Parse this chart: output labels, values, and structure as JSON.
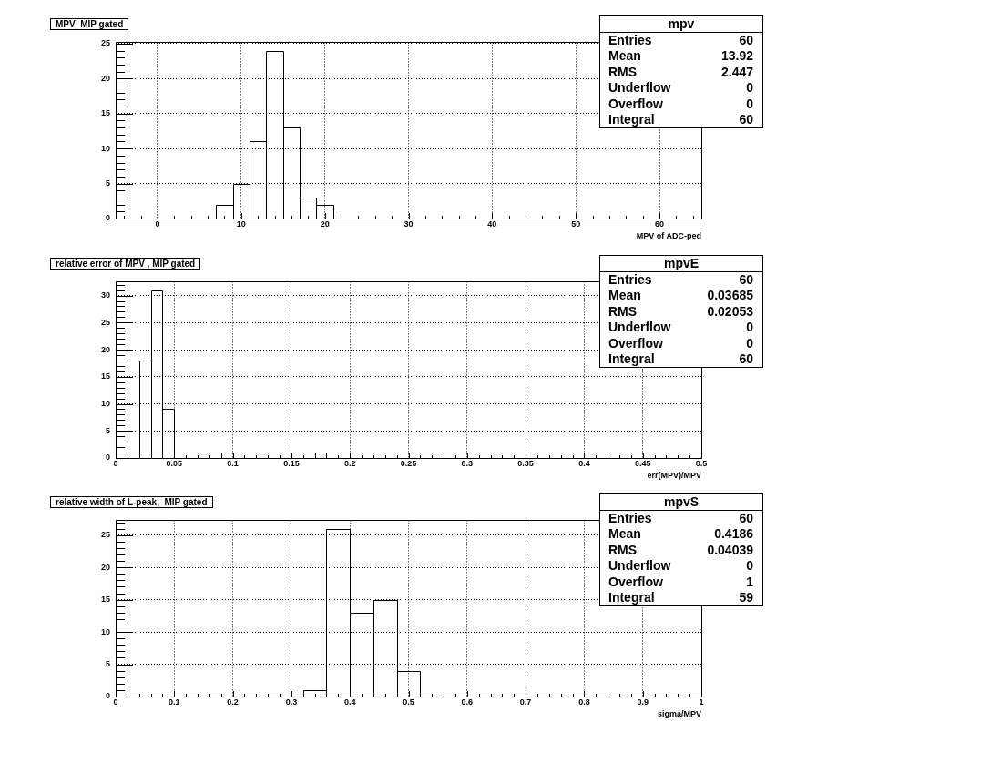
{
  "chart_data": [
    {
      "type": "histogram",
      "title": "MPV  MIP gated",
      "xlabel": "MPV of ADC-ped",
      "color": "#000000",
      "grid": true,
      "bins": [
        -5,
        -3,
        -1,
        1,
        3,
        5,
        7,
        9,
        11,
        13,
        15,
        17,
        19,
        21,
        23,
        25,
        27,
        29,
        31,
        33,
        35,
        37,
        39,
        41,
        43,
        45,
        47,
        49,
        51,
        53,
        55,
        57,
        59,
        61,
        63,
        65
      ],
      "values": [
        0,
        0,
        0,
        0,
        0,
        0,
        2,
        5,
        11,
        24,
        13,
        3,
        2,
        0,
        0,
        0,
        0,
        0,
        0,
        0,
        0,
        0,
        0,
        0,
        0,
        0,
        0,
        0,
        0,
        0,
        0,
        0,
        0,
        0,
        0
      ],
      "xlim": [
        -5,
        65
      ],
      "ylim": [
        0,
        25.2
      ],
      "xticks": [
        {
          "value": -4,
          "label": null
        },
        {
          "value": -2,
          "label": null
        },
        0,
        {
          "value": 2,
          "label": null
        },
        {
          "value": 4,
          "label": null
        },
        {
          "value": 6,
          "label": null
        },
        {
          "value": 8,
          "label": null
        },
        10,
        {
          "value": 12,
          "label": null
        },
        {
          "value": 14,
          "label": null
        },
        {
          "value": 16,
          "label": null
        },
        {
          "value": 18,
          "label": null
        },
        20,
        {
          "value": 22,
          "label": null
        },
        {
          "value": 24,
          "label": null
        },
        {
          "value": 26,
          "label": null
        },
        {
          "value": 28,
          "label": null
        },
        30,
        {
          "value": 32,
          "label": null
        },
        {
          "value": 34,
          "label": null
        },
        {
          "value": 36,
          "label": null
        },
        {
          "value": 38,
          "label": null
        },
        40,
        {
          "value": 42,
          "label": null
        },
        {
          "value": 44,
          "label": null
        },
        {
          "value": 46,
          "label": null
        },
        {
          "value": 48,
          "label": null
        },
        50,
        {
          "value": 52,
          "label": null
        },
        {
          "value": 54,
          "label": null
        },
        {
          "value": 56,
          "label": null
        },
        {
          "value": 58,
          "label": null
        },
        60,
        {
          "value": 62,
          "label": null
        },
        {
          "value": 64,
          "label": null
        }
      ],
      "yticks": [
        0,
        {
          "value": 1,
          "label": null
        },
        {
          "value": 2,
          "label": null
        },
        {
          "value": 3,
          "label": null
        },
        {
          "value": 4,
          "label": null
        },
        5,
        {
          "value": 6,
          "label": null
        },
        {
          "value": 7,
          "label": null
        },
        {
          "value": 8,
          "label": null
        },
        {
          "value": 9,
          "label": null
        },
        10,
        {
          "value": 11,
          "label": null
        },
        {
          "value": 12,
          "label": null
        },
        {
          "value": 13,
          "label": null
        },
        {
          "value": 14,
          "label": null
        },
        15,
        {
          "value": 16,
          "label": null
        },
        {
          "value": 17,
          "label": null
        },
        {
          "value": 18,
          "label": null
        },
        {
          "value": 19,
          "label": null
        },
        20,
        {
          "value": 21,
          "label": null
        },
        {
          "value": 22,
          "label": null
        },
        {
          "value": 23,
          "label": null
        },
        {
          "value": 24,
          "label": null
        },
        25
      ],
      "annotations": [
        "mpv",
        "Entries",
        "60",
        "Mean",
        "13.92",
        "RMS",
        "2.447",
        "Underflow",
        "0",
        "Overflow",
        "0",
        "Integral",
        "60"
      ]
    },
    {
      "type": "histogram",
      "title": "relative error of MPV , MIP gated",
      "xlabel": "err(MPV)/MPV",
      "color": "#000000",
      "grid": true,
      "bins": [
        0,
        0.01,
        0.02,
        0.03,
        0.04,
        0.05,
        0.06,
        0.07,
        0.08,
        0.09,
        0.1,
        0.11,
        0.12,
        0.13,
        0.14,
        0.15,
        0.16,
        0.17,
        0.18,
        0.19,
        0.2,
        0.21,
        0.22,
        0.23,
        0.24,
        0.25,
        0.26,
        0.27,
        0.28,
        0.29,
        0.3,
        0.31,
        0.32,
        0.33,
        0.34,
        0.35,
        0.36,
        0.37,
        0.38,
        0.39,
        0.4,
        0.41,
        0.42,
        0.43,
        0.44,
        0.45,
        0.46,
        0.47,
        0.48,
        0.49,
        0.5
      ],
      "values": [
        0,
        0,
        18,
        31,
        9,
        0,
        0,
        0,
        0,
        1,
        0,
        0,
        0,
        0,
        0,
        0,
        0,
        1,
        0,
        0,
        0,
        0,
        0,
        0,
        0,
        0,
        0,
        0,
        0,
        0,
        0,
        0,
        0,
        0,
        0,
        0,
        0,
        0,
        0,
        0,
        0,
        0,
        0,
        0,
        0,
        0,
        0,
        0,
        0,
        0
      ],
      "xlim": [
        0,
        0.5
      ],
      "ylim": [
        0,
        32.55
      ],
      "xticks": [
        0,
        {
          "value": 0.01,
          "label": null
        },
        {
          "value": 0.02,
          "label": null
        },
        {
          "value": 0.03,
          "label": null
        },
        {
          "value": 0.04,
          "label": null
        },
        0.05,
        {
          "value": 0.06,
          "label": null
        },
        {
          "value": 0.07,
          "label": null
        },
        {
          "value": 0.08,
          "label": null
        },
        {
          "value": 0.09,
          "label": null
        },
        0.1,
        {
          "value": 0.11,
          "label": null
        },
        {
          "value": 0.12,
          "label": null
        },
        {
          "value": 0.13,
          "label": null
        },
        {
          "value": 0.14,
          "label": null
        },
        0.15,
        {
          "value": 0.16,
          "label": null
        },
        {
          "value": 0.17,
          "label": null
        },
        {
          "value": 0.18,
          "label": null
        },
        {
          "value": 0.19,
          "label": null
        },
        0.2,
        {
          "value": 0.21,
          "label": null
        },
        {
          "value": 0.22,
          "label": null
        },
        {
          "value": 0.23,
          "label": null
        },
        {
          "value": 0.24,
          "label": null
        },
        0.25,
        {
          "value": 0.26,
          "label": null
        },
        {
          "value": 0.27,
          "label": null
        },
        {
          "value": 0.28,
          "label": null
        },
        {
          "value": 0.29,
          "label": null
        },
        0.3,
        {
          "value": 0.31,
          "label": null
        },
        {
          "value": 0.32,
          "label": null
        },
        {
          "value": 0.33,
          "label": null
        },
        {
          "value": 0.34,
          "label": null
        },
        0.35,
        {
          "value": 0.36,
          "label": null
        },
        {
          "value": 0.37,
          "label": null
        },
        {
          "value": 0.38,
          "label": null
        },
        {
          "value": 0.39,
          "label": null
        },
        0.4,
        {
          "value": 0.41,
          "label": null
        },
        {
          "value": 0.42,
          "label": null
        },
        {
          "value": 0.43,
          "label": null
        },
        {
          "value": 0.44,
          "label": null
        },
        0.45,
        {
          "value": 0.46,
          "label": null
        },
        {
          "value": 0.47,
          "label": null
        },
        {
          "value": 0.48,
          "label": null
        },
        {
          "value": 0.49,
          "label": null
        },
        0.5
      ],
      "yticks": [
        0,
        {
          "value": 1,
          "label": null
        },
        {
          "value": 2,
          "label": null
        },
        {
          "value": 3,
          "label": null
        },
        {
          "value": 4,
          "label": null
        },
        5,
        {
          "value": 6,
          "label": null
        },
        {
          "value": 7,
          "label": null
        },
        {
          "value": 8,
          "label": null
        },
        {
          "value": 9,
          "label": null
        },
        10,
        {
          "value": 11,
          "label": null
        },
        {
          "value": 12,
          "label": null
        },
        {
          "value": 13,
          "label": null
        },
        {
          "value": 14,
          "label": null
        },
        15,
        {
          "value": 16,
          "label": null
        },
        {
          "value": 17,
          "label": null
        },
        {
          "value": 18,
          "label": null
        },
        {
          "value": 19,
          "label": null
        },
        20,
        {
          "value": 21,
          "label": null
        },
        {
          "value": 22,
          "label": null
        },
        {
          "value": 23,
          "label": null
        },
        {
          "value": 24,
          "label": null
        },
        25,
        {
          "value": 26,
          "label": null
        },
        {
          "value": 27,
          "label": null
        },
        {
          "value": 28,
          "label": null
        },
        {
          "value": 29,
          "label": null
        },
        30,
        {
          "value": 31,
          "label": null
        },
        {
          "value": 32,
          "label": null
        }
      ],
      "annotations": [
        "mpvE",
        "Entries",
        "60",
        "Mean",
        "0.03685",
        "RMS",
        "0.02053",
        "Underflow",
        "0",
        "Overflow",
        "0",
        "Integral",
        "60"
      ]
    },
    {
      "type": "histogram",
      "title": "relative width of L-peak,  MIP gated",
      "xlabel": "sigma/MPV",
      "color": "#000000",
      "grid": true,
      "bins": [
        0,
        0.04,
        0.08,
        0.12,
        0.16,
        0.2,
        0.24,
        0.28,
        0.32,
        0.36,
        0.4,
        0.44,
        0.48,
        0.52,
        0.56,
        0.6,
        0.64,
        0.68,
        0.72,
        0.76,
        0.8,
        0.84,
        0.88,
        0.92,
        0.96,
        1
      ],
      "values": [
        0,
        0,
        0,
        0,
        0,
        0,
        0,
        0,
        1,
        26,
        13,
        15,
        4,
        0,
        0,
        0,
        0,
        0,
        0,
        0,
        0,
        0,
        0,
        0,
        0
      ],
      "xlim": [
        0,
        1
      ],
      "ylim": [
        0,
        27.3
      ],
      "xticks": [
        0,
        {
          "value": 0.02,
          "label": null
        },
        {
          "value": 0.04,
          "label": null
        },
        {
          "value": 0.06,
          "label": null
        },
        {
          "value": 0.08,
          "label": null
        },
        0.1,
        {
          "value": 0.12,
          "label": null
        },
        {
          "value": 0.14,
          "label": null
        },
        {
          "value": 0.16,
          "label": null
        },
        {
          "value": 0.18,
          "label": null
        },
        0.2,
        {
          "value": 0.22,
          "label": null
        },
        {
          "value": 0.24,
          "label": null
        },
        {
          "value": 0.26,
          "label": null
        },
        {
          "value": 0.28,
          "label": null
        },
        0.3,
        {
          "value": 0.32,
          "label": null
        },
        {
          "value": 0.34,
          "label": null
        },
        {
          "value": 0.36,
          "label": null
        },
        {
          "value": 0.38,
          "label": null
        },
        0.4,
        {
          "value": 0.42,
          "label": null
        },
        {
          "value": 0.44,
          "label": null
        },
        {
          "value": 0.46,
          "label": null
        },
        {
          "value": 0.48,
          "label": null
        },
        0.5,
        {
          "value": 0.52,
          "label": null
        },
        {
          "value": 0.54,
          "label": null
        },
        {
          "value": 0.56,
          "label": null
        },
        {
          "value": 0.58,
          "label": null
        },
        0.6,
        {
          "value": 0.62,
          "label": null
        },
        {
          "value": 0.64,
          "label": null
        },
        {
          "value": 0.66,
          "label": null
        },
        {
          "value": 0.68,
          "label": null
        },
        0.7,
        {
          "value": 0.72,
          "label": null
        },
        {
          "value": 0.74,
          "label": null
        },
        {
          "value": 0.76,
          "label": null
        },
        {
          "value": 0.78,
          "label": null
        },
        0.8,
        {
          "value": 0.82,
          "label": null
        },
        {
          "value": 0.84,
          "label": null
        },
        {
          "value": 0.86,
          "label": null
        },
        {
          "value": 0.88,
          "label": null
        },
        0.9,
        {
          "value": 0.92,
          "label": null
        },
        {
          "value": 0.94,
          "label": null
        },
        {
          "value": 0.96,
          "label": null
        },
        {
          "value": 0.98,
          "label": null
        },
        1
      ],
      "yticks": [
        0,
        {
          "value": 1,
          "label": null
        },
        {
          "value": 2,
          "label": null
        },
        {
          "value": 3,
          "label": null
        },
        {
          "value": 4,
          "label": null
        },
        5,
        {
          "value": 6,
          "label": null
        },
        {
          "value": 7,
          "label": null
        },
        {
          "value": 8,
          "label": null
        },
        {
          "value": 9,
          "label": null
        },
        10,
        {
          "value": 11,
          "label": null
        },
        {
          "value": 12,
          "label": null
        },
        {
          "value": 13,
          "label": null
        },
        {
          "value": 14,
          "label": null
        },
        15,
        {
          "value": 16,
          "label": null
        },
        {
          "value": 17,
          "label": null
        },
        {
          "value": 18,
          "label": null
        },
        {
          "value": 19,
          "label": null
        },
        20,
        {
          "value": 21,
          "label": null
        },
        {
          "value": 22,
          "label": null
        },
        {
          "value": 23,
          "label": null
        },
        {
          "value": 24,
          "label": null
        },
        25,
        {
          "value": 26,
          "label": null
        },
        {
          "value": 27,
          "label": null
        }
      ],
      "annotations": [
        "mpvS",
        "Entries",
        "60",
        "Mean",
        "0.4186",
        "RMS",
        "0.04039",
        "Underflow",
        "0",
        "Overflow",
        "1",
        "Integral",
        "59"
      ]
    }
  ]
}
